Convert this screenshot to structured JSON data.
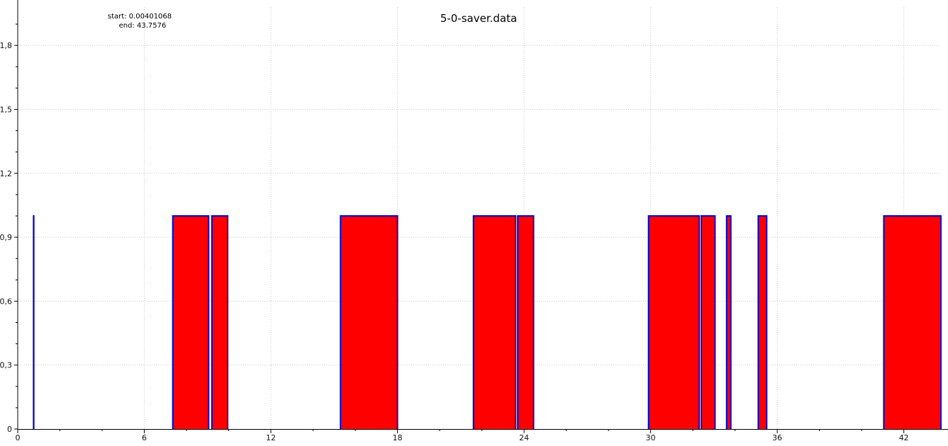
{
  "chart_data": {
    "type": "area",
    "title": "5-0-saver.data",
    "annotations": {
      "start": "start: 0.00401068",
      "end": "end: 43.7576"
    },
    "xlabel": "",
    "ylabel": "",
    "xlim": [
      0,
      43.7576
    ],
    "ylim": [
      0,
      1.98
    ],
    "x_ticks": [
      {
        "value": 0,
        "label": "0"
      },
      {
        "value": 6,
        "label": "6"
      },
      {
        "value": 12,
        "label": "12"
      },
      {
        "value": 18,
        "label": "18"
      },
      {
        "value": 24,
        "label": "24"
      },
      {
        "value": 30,
        "label": "30"
      },
      {
        "value": 36,
        "label": "36"
      },
      {
        "value": 42,
        "label": "42"
      }
    ],
    "y_ticks": [
      {
        "value": 0,
        "label": "0"
      },
      {
        "value": 0.3,
        "label": "0,3"
      },
      {
        "value": 0.6,
        "label": "0,6"
      },
      {
        "value": 0.9,
        "label": "0,9"
      },
      {
        "value": 1.2,
        "label": "1,2"
      },
      {
        "value": 1.5,
        "label": "1,5"
      },
      {
        "value": 1.8,
        "label": "1,8"
      }
    ],
    "grid": true,
    "series": [
      {
        "level": 1,
        "intervals": [
          [
            0.75,
            0.76
          ],
          [
            7.35,
            9.05
          ],
          [
            9.2,
            9.95
          ],
          [
            15.3,
            18.0
          ],
          [
            21.6,
            23.6
          ],
          [
            23.7,
            24.45
          ],
          [
            29.9,
            32.3
          ],
          [
            32.4,
            33.05
          ],
          [
            33.6,
            33.8
          ],
          [
            35.1,
            35.5
          ],
          [
            41.05,
            43.7576
          ]
        ]
      }
    ],
    "colors": {
      "fill": "#ff0000",
      "line": "#0000cc",
      "grid": "#c8c8c8",
      "axis": "#000000"
    }
  }
}
